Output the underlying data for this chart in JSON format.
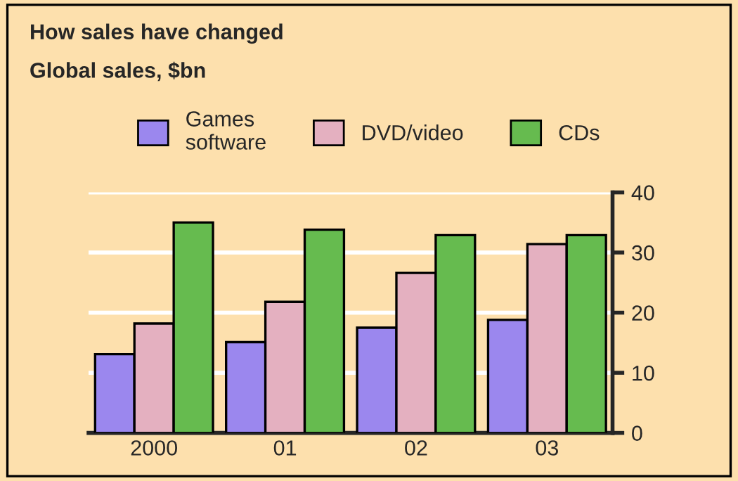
{
  "chart_data": {
    "type": "bar",
    "title": "How sales have changed",
    "subtitle": "Global sales, $bn",
    "categories": [
      "2000",
      "01",
      "02",
      "03"
    ],
    "series": [
      {
        "name": "Games\nsoftware",
        "color": "#9b87ee",
        "values": [
          13.1,
          15.1,
          17.5,
          18.8
        ]
      },
      {
        "name": "DVD/video",
        "color": "#e4b0c0",
        "values": [
          18.2,
          21.8,
          26.6,
          31.4
        ]
      },
      {
        "name": "CDs",
        "color": "#66bb4f",
        "values": [
          35.0,
          33.8,
          32.9,
          32.9
        ]
      }
    ],
    "ylim": [
      0,
      40
    ],
    "yticks": [
      0,
      10,
      20,
      30,
      40
    ],
    "grid": "y",
    "legend": "top"
  }
}
